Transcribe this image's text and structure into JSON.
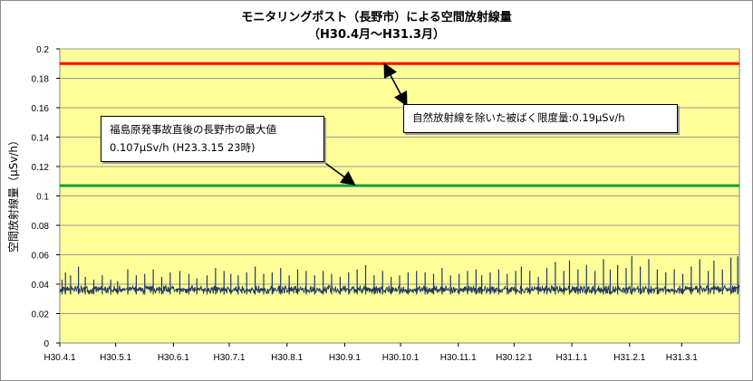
{
  "chart_data": {
    "type": "line",
    "title": "モニタリングポスト（長野市）による空間放射線量",
    "subtitle": "（H30.4月～H31.3月）",
    "ylabel": "空間放射線量（μSv/h）",
    "xlabel": "",
    "ylim": [
      0,
      0.2
    ],
    "y_ticks": [
      "0",
      "0.02",
      "0.04",
      "0.06",
      "0.08",
      "0.1",
      "0.12",
      "0.14",
      "0.16",
      "0.18",
      "0.2"
    ],
    "x_ticks": [
      "H30.4.1",
      "H30.5.1",
      "H30.6.1",
      "H30.7.1",
      "H30.8.1",
      "H30.9.1",
      "H30.10.1",
      "H30.11.1",
      "H30.12.1",
      "H31.1.1",
      "H31.2.1",
      "H31.3.1"
    ],
    "x_tick_days": [
      0,
      30,
      61,
      91,
      122,
      153,
      183,
      214,
      244,
      275,
      306,
      334
    ],
    "grid": true,
    "plot_background": "#FFFF99",
    "series_color": "#1f3864",
    "series": [
      {
        "baseline": 0.037,
        "spikes": [
          [
            0.04,
            0.043
          ],
          [
            0.1,
            0.048
          ],
          [
            0.19,
            0.046
          ],
          [
            0.33,
            0.052
          ],
          [
            0.45,
            0.045
          ],
          [
            0.6,
            0.043
          ],
          [
            0.75,
            0.046
          ],
          [
            0.9,
            0.043
          ],
          [
            1.02,
            0.042
          ],
          [
            1.2,
            0.05
          ],
          [
            1.35,
            0.046
          ],
          [
            1.5,
            0.047
          ],
          [
            1.65,
            0.05
          ],
          [
            1.8,
            0.045
          ],
          [
            1.95,
            0.048
          ],
          [
            2.12,
            0.049
          ],
          [
            2.28,
            0.047
          ],
          [
            2.42,
            0.044
          ],
          [
            2.6,
            0.046
          ],
          [
            2.75,
            0.051
          ],
          [
            2.9,
            0.049
          ],
          [
            3.02,
            0.047
          ],
          [
            3.15,
            0.046
          ],
          [
            3.3,
            0.048
          ],
          [
            3.45,
            0.052
          ],
          [
            3.6,
            0.047
          ],
          [
            3.75,
            0.048
          ],
          [
            3.9,
            0.051
          ],
          [
            4.05,
            0.046
          ],
          [
            4.2,
            0.05
          ],
          [
            4.35,
            0.049
          ],
          [
            4.5,
            0.046
          ],
          [
            4.65,
            0.049
          ],
          [
            4.8,
            0.047
          ],
          [
            4.95,
            0.045
          ],
          [
            5.1,
            0.048
          ],
          [
            5.25,
            0.05
          ],
          [
            5.4,
            0.053
          ],
          [
            5.55,
            0.046
          ],
          [
            5.7,
            0.049
          ],
          [
            5.85,
            0.045
          ],
          [
            6.0,
            0.046
          ],
          [
            6.15,
            0.048
          ],
          [
            6.3,
            0.049
          ],
          [
            6.45,
            0.048
          ],
          [
            6.6,
            0.047
          ],
          [
            6.75,
            0.051
          ],
          [
            6.9,
            0.046
          ],
          [
            7.05,
            0.047
          ],
          [
            7.2,
            0.049
          ],
          [
            7.35,
            0.05
          ],
          [
            7.45,
            0.046
          ],
          [
            7.6,
            0.048
          ],
          [
            7.75,
            0.05
          ],
          [
            7.9,
            0.047
          ],
          [
            8.05,
            0.049
          ],
          [
            8.15,
            0.052
          ],
          [
            8.3,
            0.049
          ],
          [
            8.45,
            0.045
          ],
          [
            8.6,
            0.051
          ],
          [
            8.75,
            0.055
          ],
          [
            8.9,
            0.049
          ],
          [
            9.0,
            0.056
          ],
          [
            9.15,
            0.05
          ],
          [
            9.3,
            0.053
          ],
          [
            9.45,
            0.049
          ],
          [
            9.6,
            0.057
          ],
          [
            9.72,
            0.05
          ],
          [
            9.85,
            0.053
          ],
          [
            10.0,
            0.051
          ],
          [
            10.1,
            0.059
          ],
          [
            10.25,
            0.052
          ],
          [
            10.4,
            0.057
          ],
          [
            10.55,
            0.05
          ],
          [
            10.7,
            0.048
          ],
          [
            10.85,
            0.05
          ],
          [
            11.0,
            0.047
          ],
          [
            11.15,
            0.052
          ],
          [
            11.3,
            0.057
          ],
          [
            11.45,
            0.049
          ],
          [
            11.55,
            0.056
          ],
          [
            11.7,
            0.05
          ],
          [
            11.85,
            0.058
          ],
          [
            11.97,
            0.059
          ]
        ]
      }
    ],
    "reference_lines": [
      {
        "value": 0.19,
        "color": "#FF0000"
      },
      {
        "value": 0.107,
        "color": "#00A040"
      }
    ],
    "annotations": [
      {
        "text": "自然放射線を除いた被ばく限度量:0.19μSv/h"
      },
      {
        "line1": "福島原発事故直後の長野市の最大値",
        "line2": "0.107μSv/h (H23.3.15  23時)"
      }
    ]
  }
}
